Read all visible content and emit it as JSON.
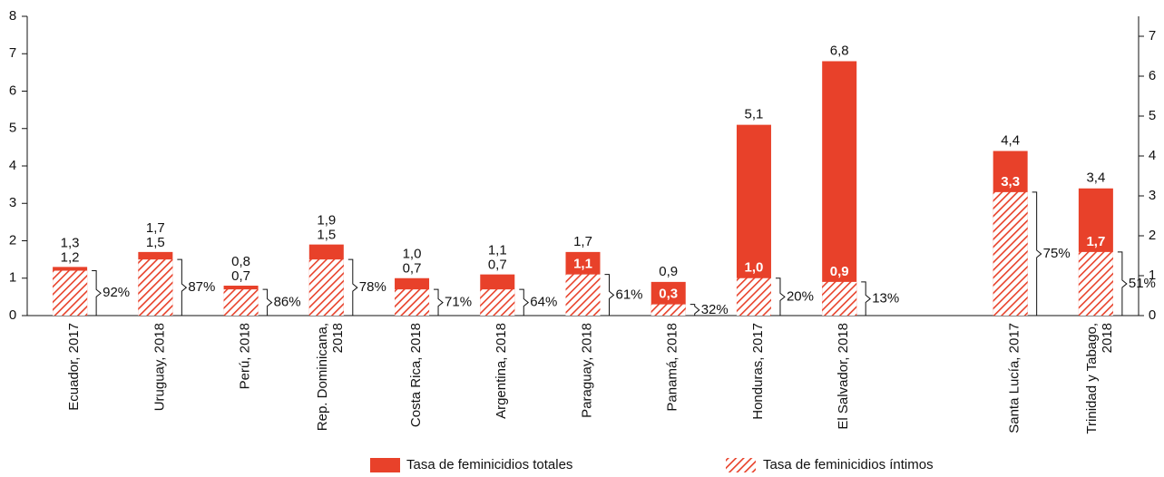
{
  "chart_data": {
    "type": "bar",
    "categories": [
      "Ecuador, 2017",
      "Uruguay, 2018",
      "Perú, 2018",
      "Rep. Dominicana, 2018",
      "Costa Rica, 2018",
      "Argentina, 2018",
      "Paraguay, 2018",
      "Panamá, 2018",
      "Honduras, 2017",
      "El Salvador, 2018",
      null,
      "Santa Lucía, 2017",
      "Trinidad y Tabago, 2018"
    ],
    "series": [
      {
        "name": "Tasa de feminicidios totales",
        "color": "#e8412a",
        "values": [
          1.3,
          1.7,
          0.8,
          1.9,
          1.0,
          1.1,
          1.7,
          0.9,
          5.1,
          6.8,
          null,
          4.4,
          3.4
        ],
        "value_labels": [
          "1,3",
          "1,7",
          "0,8",
          "1,9",
          "1,0",
          "1,1",
          "1,7",
          "0,9",
          "5,1",
          "6,8",
          null,
          "4,4",
          "3,4"
        ]
      },
      {
        "name": "Tasa de feminicidios íntimos",
        "color": "#e8412a",
        "pattern": "hatch",
        "values": [
          1.2,
          1.5,
          0.7,
          1.5,
          0.7,
          0.7,
          1.1,
          0.3,
          1.0,
          0.9,
          null,
          3.3,
          1.7
        ],
        "value_labels": [
          "1,2",
          "1,5",
          "0,7",
          "1,5",
          "0,7",
          "0,7",
          "1,1",
          "0,3",
          "1,0",
          "0,9",
          null,
          "3,3",
          "1,7"
        ]
      }
    ],
    "shares": {
      "values": [
        92,
        87,
        86,
        78,
        71,
        64,
        61,
        32,
        20,
        13,
        null,
        75,
        51
      ],
      "value_labels": [
        "92%",
        "87%",
        "86%",
        "78%",
        "71%",
        "64%",
        "61%",
        "32%",
        "20%",
        "13%",
        null,
        "75%",
        "51%"
      ]
    },
    "ylim": [
      0,
      8
    ],
    "yticks": [
      0,
      1,
      2,
      3,
      4,
      5,
      6,
      7,
      8
    ],
    "y2lim": [
      0,
      7.5
    ],
    "y2ticks": [
      0,
      1,
      2,
      3,
      4,
      5,
      6,
      7
    ],
    "grid": false,
    "legend": "bottom"
  }
}
